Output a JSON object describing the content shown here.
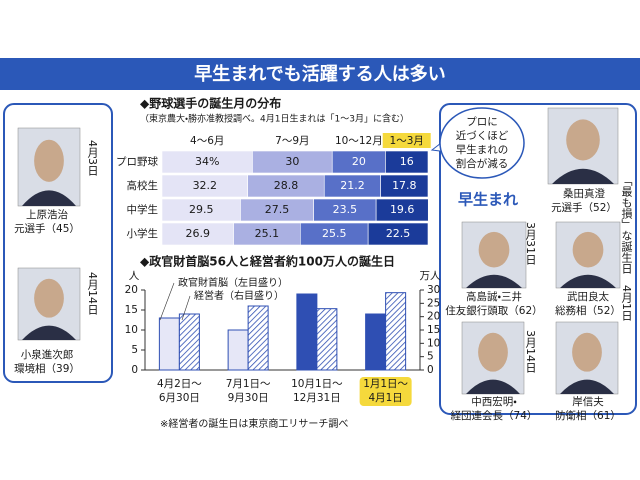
{
  "title": "早生まれでも活躍する人は多い",
  "chart_data": [
    {
      "type": "bar",
      "orientation": "horizontal",
      "stacked": true,
      "title": "◆野球選手の誕生月の分布",
      "subtitle": "（東京農大・勝亦准教授調べ。4月1日生まれは「1～3月」に含む）",
      "categories": [
        "プロ野球",
        "高校生",
        "中学生",
        "小学生"
      ],
      "highlight_series": 3,
      "series": [
        {
          "name": "4～6月",
          "color": "#e4e4f6",
          "values": [
            34,
            32.2,
            29.5,
            26.9
          ],
          "value_labels": [
            "34%",
            "32.2",
            "29.5",
            "26.9"
          ]
        },
        {
          "name": "7～9月",
          "color": "#aab0e2",
          "values": [
            30,
            28.8,
            27.5,
            25.1
          ]
        },
        {
          "name": "10～12月",
          "color": "#5870c8",
          "values": [
            20,
            21.2,
            23.5,
            25.5
          ]
        },
        {
          "name": "1～3月",
          "color": "#1b3b9a",
          "values": [
            16,
            17.8,
            19.6,
            22.5
          ]
        }
      ],
      "annotation": [
        "プロに",
        "近づくほど",
        "早生まれの",
        "割合が減る"
      ]
    },
    {
      "type": "bar",
      "title": "◆政官財首脳56人と経営者約100万人の誕生日",
      "ylabel": "人",
      "y2label": "万人",
      "categories": [
        [
          "4月2日～",
          "6月30日"
        ],
        [
          "7月1日～",
          "9月30日"
        ],
        [
          "10月1日～",
          "12月31日"
        ],
        [
          "1月1日～",
          "4月1日"
        ]
      ],
      "highlight_category": 3,
      "ylim": [
        0,
        20
      ],
      "yticks": [
        0,
        5,
        10,
        15,
        20
      ],
      "y2lim": [
        0,
        30
      ],
      "y2ticks": [
        0,
        5,
        10,
        15,
        20,
        25,
        30
      ],
      "series": [
        {
          "name": "政官財首脳（左目盛り）",
          "color": "#2f4fb3",
          "values": [
            13,
            10,
            19,
            14
          ]
        },
        {
          "name": "経営者（右目盛り）",
          "color": "#2f4fb3",
          "axis": "y2",
          "hatched": true,
          "values": [
            21,
            24,
            23,
            29
          ]
        }
      ],
      "note": "※経営者の誕生日は東京商工リサーチ調べ"
    }
  ],
  "group_label": "早生まれ",
  "side_note": "「最も損」な誕生日　4月1日",
  "dates": [
    "4月3日",
    "4月14日",
    "3月31日",
    "3月14日"
  ],
  "people": [
    [
      "上原浩治",
      "元選手（45）"
    ],
    [
      "小泉進次郎",
      "環境相（39）"
    ],
    [
      "桑田真澄",
      "元選手（52）"
    ],
    [
      "高島誠・三井",
      "住友銀行頭取（62）"
    ],
    [
      "武田良太",
      "総務相（52）"
    ],
    [
      "中西宏明・",
      "経団連会長（74）"
    ],
    [
      "岸信夫",
      "防衛相（61）"
    ]
  ]
}
